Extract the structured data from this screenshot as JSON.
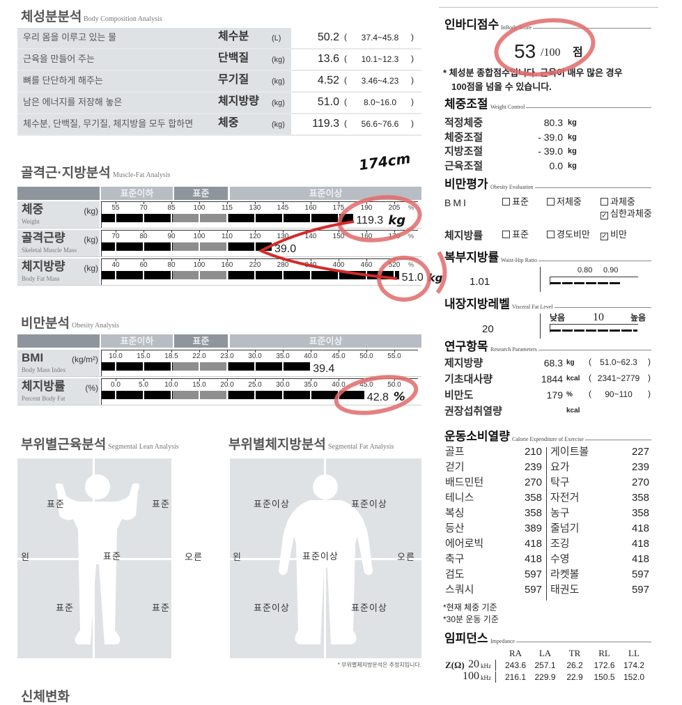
{
  "body_composition": {
    "title": "체성분분석",
    "title_en": "Body Composition Analysis",
    "rows": [
      {
        "desc": "우리 몸을 이루고 있는 물",
        "name": "체수분",
        "unit": "(L)",
        "value": "50.2",
        "range": "37.4~45.8"
      },
      {
        "desc": "근육을 만들어 주는",
        "name": "단백질",
        "unit": "(kg)",
        "value": "13.6",
        "range": "10.1~12.3"
      },
      {
        "desc": "뼈를 단단하게 해주는",
        "name": "무기질",
        "unit": "(kg)",
        "value": "4.52",
        "range": "3.46~4.23"
      },
      {
        "desc": "남은 에너지를 저장해 놓은",
        "name": "체지방량",
        "unit": "(kg)",
        "value": "51.0",
        "range": "8.0~16.0"
      },
      {
        "desc": "체수분, 단백질, 무기질, 체지방을 모두 합하면",
        "name": "체중",
        "unit": "(kg)",
        "value": "119.3",
        "range": "56.6~76.6"
      }
    ]
  },
  "bands": {
    "below": "표준이하",
    "normal": "표준",
    "above": "표준이상"
  },
  "muscle_fat": {
    "title": "골격근·지방분석",
    "title_en": "Muscle-Fat Analysis",
    "rows": [
      {
        "name": "체중",
        "name_en": "Weight",
        "unit": "(kg)",
        "ticks": [
          "55",
          "70",
          "85",
          "100",
          "115",
          "130",
          "145",
          "160",
          "175",
          "190",
          "205"
        ],
        "pct": "%",
        "level": 183,
        "value": "119.3"
      },
      {
        "name": "골격근량",
        "name_en": "Skeletal Muscle Mass",
        "unit": "(kg)",
        "ticks": [
          "70",
          "80",
          "90",
          "100",
          "110",
          "120",
          "130",
          "140",
          "150",
          "160",
          "170"
        ],
        "pct": "%",
        "level": 126,
        "value": "39.0"
      },
      {
        "name": "체지방량",
        "name_en": "Body Fat Mass",
        "unit": "(kg)",
        "ticks": [
          "40",
          "60",
          "80",
          "100",
          "160",
          "220",
          "280",
          "340",
          "400",
          "460",
          "520"
        ],
        "pct": "%",
        "level": 530,
        "value": "51.0"
      }
    ]
  },
  "obesity": {
    "title": "비만분석",
    "title_en": "Obesity Analysis",
    "rows": [
      {
        "name": "BMI",
        "name_en": "Body Mass Index",
        "unit": "(kg/m²)",
        "ticks": [
          "10.0",
          "15.0",
          "18.5",
          "22.0",
          "23.0",
          "30.0",
          "35.0",
          "40.0",
          "45.0",
          "50.0",
          "55.0"
        ],
        "pct": "",
        "level": 39.9,
        "value": "39.4"
      },
      {
        "name": "체지방률",
        "name_en": "Percent Body Fat",
        "unit": "(%)",
        "ticks": [
          "0.0",
          "5.0",
          "10.0",
          "15.0",
          "20.0",
          "25.0",
          "30.0",
          "35.0",
          "40.0",
          "45.0",
          "50.0"
        ],
        "pct": "",
        "level": 44.6,
        "value": "42.8"
      }
    ]
  },
  "handwritten": {
    "height": "174cm",
    "weight_unit": "kg",
    "fat_unit": "kg",
    "pbf_unit": "%"
  },
  "segmental_lean": {
    "title": "부위별근육분석",
    "title_en": "Segmental Lean Analysis",
    "left_arm": "표준",
    "right_arm": "표준",
    "trunk": "표준",
    "left_leg": "표준",
    "right_leg": "표준",
    "left": "왼",
    "right": "오른"
  },
  "segmental_fat": {
    "title": "부위별체지방분석",
    "title_en": "Segmental Fat Analysis",
    "left_arm": "표준이상",
    "right_arm": "표준이상",
    "trunk": "표준이상",
    "left_leg": "표준이상",
    "right_leg": "표준이상",
    "left": "왼",
    "right": "오른",
    "note": "* 부위별체지방분석은 추정치입니다."
  },
  "next_section_title": "신체변화",
  "inbody_score": {
    "title": "인바디점수",
    "title_en": "InBody Score",
    "score": "53",
    "max": "/100",
    "unit": "점",
    "note1": "* 체성분 종합점수입니다. 근육이 매우 많은 경우",
    "note2": "100점을 넘을 수 있습니다."
  },
  "weight_control": {
    "title": "체중조절",
    "title_en": "Weight Control",
    "rows": [
      {
        "label": "적정체중",
        "value": "80.3",
        "unit": "kg"
      },
      {
        "label": "체중조절",
        "value": "- 39.0",
        "unit": "kg"
      },
      {
        "label": "지방조절",
        "value": "- 39.0",
        "unit": "kg"
      },
      {
        "label": "근육조절",
        "value": "0.0",
        "unit": "kg"
      }
    ]
  },
  "obesity_eval": {
    "title": "비만평가",
    "title_en": "Obesity Evaluation",
    "bmi_label": "BMI",
    "bmi_options": [
      {
        "label": "표준",
        "checked": false
      },
      {
        "label": "저체중",
        "checked": false
      },
      {
        "label": "과체중",
        "checked": false
      },
      {
        "label": "심한과체중",
        "checked": true
      }
    ],
    "pbf_label": "체지방률",
    "pbf_options": [
      {
        "label": "표준",
        "checked": false
      },
      {
        "label": "경도비만",
        "checked": false
      },
      {
        "label": "비만",
        "checked": true
      }
    ]
  },
  "whr": {
    "title": "복부지방률",
    "title_en": "Waist-Hip Ratio",
    "value": "1.01",
    "tick1": "0.80",
    "tick2": "0.90"
  },
  "visceral": {
    "title": "내장지방레벨",
    "title_en": "Visceral Fat Level",
    "value": "20",
    "low": "낮음",
    "mid": "10",
    "high": "높음"
  },
  "research": {
    "title": "연구항목",
    "title_en": "Research Parameters",
    "rows": [
      {
        "label": "제지방량",
        "value": "68.3",
        "unit": "kg",
        "range": "51.0~62.3"
      },
      {
        "label": "기초대사량",
        "value": "1844",
        "unit": "kcal",
        "range": "2341~2779"
      },
      {
        "label": "비만도",
        "value": "179",
        "unit": "%",
        "range": "90~110"
      },
      {
        "label": "권장섭취열량",
        "value": "",
        "unit": "kcal",
        "range": ""
      }
    ]
  },
  "exercise": {
    "title": "운동소비열량",
    "title_en": "Calorie Expenditure of Exercise",
    "rows": [
      [
        "골프",
        "210",
        "게이트볼",
        "227"
      ],
      [
        "걷기",
        "239",
        "요가",
        "239"
      ],
      [
        "배드민턴",
        "270",
        "탁구",
        "270"
      ],
      [
        "테니스",
        "358",
        "자전거",
        "358"
      ],
      [
        "복싱",
        "358",
        "농구",
        "358"
      ],
      [
        "등산",
        "389",
        "줄넘기",
        "418"
      ],
      [
        "에어로빅",
        "418",
        "조깅",
        "418"
      ],
      [
        "축구",
        "418",
        "수영",
        "418"
      ],
      [
        "검도",
        "597",
        "라켓볼",
        "597"
      ],
      [
        "스쿼시",
        "597",
        "태권도",
        "597"
      ]
    ],
    "note1": "*현재 체중 기준",
    "note2": "*30분 운동 기준"
  },
  "impedance": {
    "title": "임피던스",
    "title_en": "Impedance",
    "z_label": "Z(Ω)",
    "headers": [
      "RA",
      "LA",
      "TR",
      "RL",
      "LL"
    ],
    "rows": [
      {
        "freq": "20",
        "unit": "kHz",
        "values": [
          "243.6",
          "257.1",
          "26.2",
          "172.6",
          "174.2"
        ]
      },
      {
        "freq": "100",
        "unit": "kHz",
        "values": [
          "216.1",
          "229.9",
          "22.9",
          "150.5",
          "152.0"
        ]
      }
    ]
  },
  "colors": {
    "annotation_red": "#d42a2a",
    "circle_red": "#e26a6a",
    "panel_gray": "#dfe2e5",
    "band_dark": "#8f959c",
    "band_light": "#b8bdc3"
  }
}
